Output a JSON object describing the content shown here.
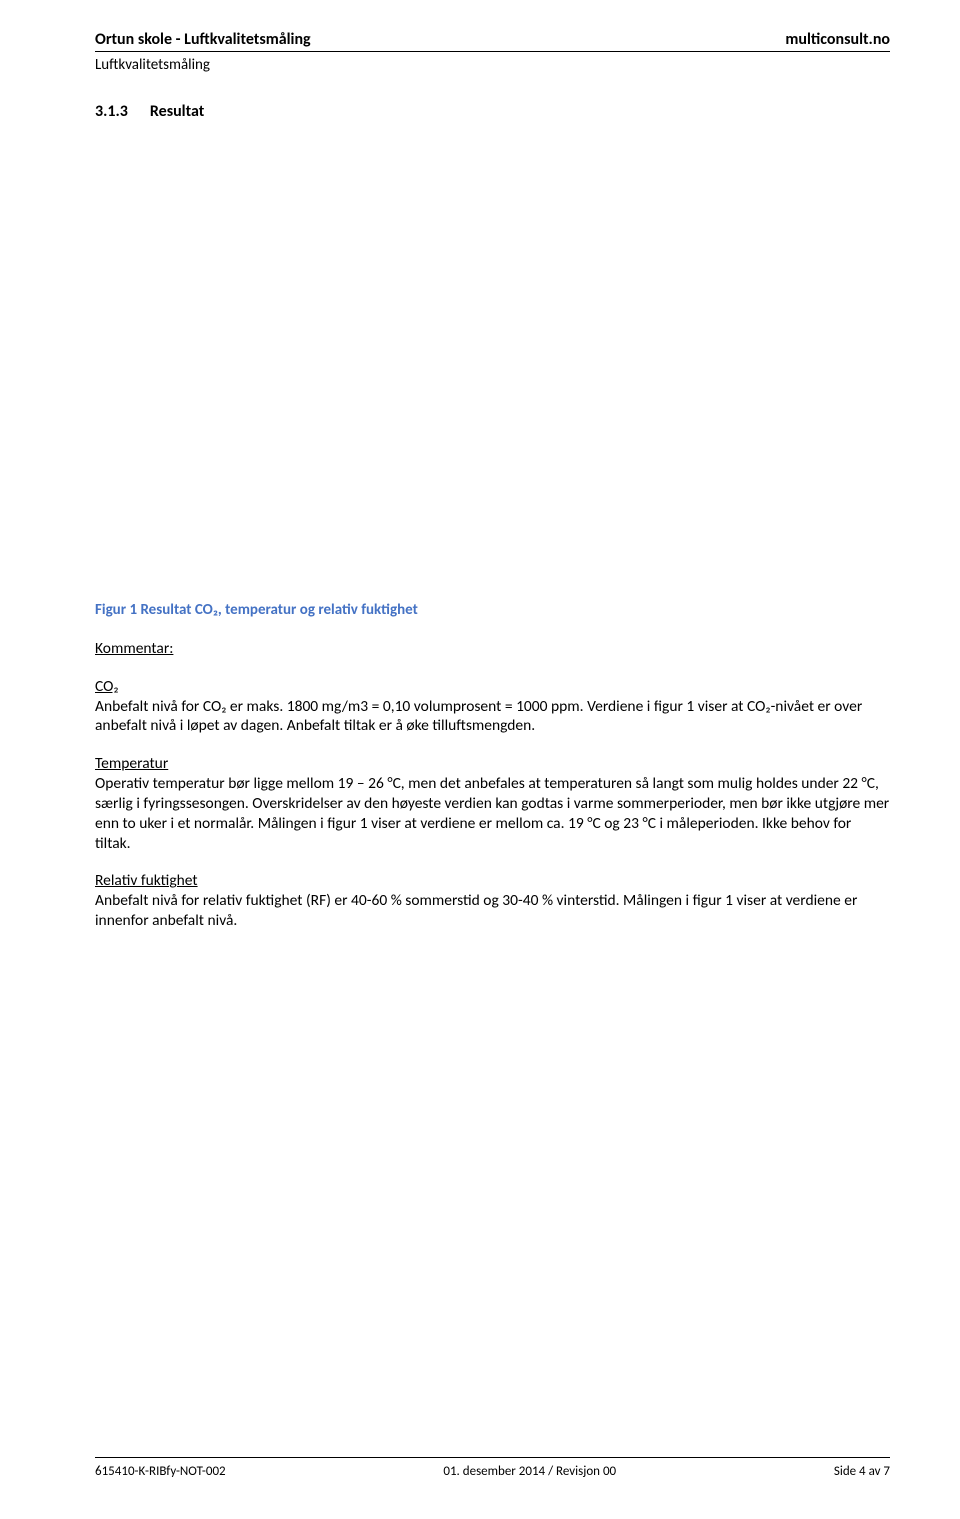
{
  "header": {
    "left": "Ortun skole - Luftkvalitetsmåling",
    "right": "multiconsult.no",
    "sub": "Luftkvalitetsmåling"
  },
  "section": {
    "number": "3.1.3",
    "title": "Resultat"
  },
  "figure_caption": "Figur 1 Resultat CO₂, temperatur og relativ fuktighet",
  "kommentar_label": "Kommentar:",
  "co2": {
    "label": "CO₂",
    "line1": "Anbefalt nivå for CO₂ er maks. 1800 mg/m3 = 0,10 volumprosent = 1000 ppm. Verdiene i figur 1 viser at CO₂-nivået er over anbefalt nivå i løpet av dagen. Anbefalt tiltak er å øke tilluftsmengden."
  },
  "temperatur": {
    "label": "Temperatur",
    "text": "Operativ temperatur bør ligge mellom 19 – 26 °C, men det anbefales at temperaturen så langt som mulig holdes under 22 °C, særlig i fyringssesongen. Overskridelser av den høyeste verdien kan godtas i varme sommerperioder, men bør ikke utgjøre mer enn to uker i et normalår. Målingen i figur 1 viser at verdiene er mellom ca. 19 °C og 23 °C i måleperioden. Ikke behov for tiltak."
  },
  "fuktighet": {
    "label": "Relativ fuktighet",
    "text": "Anbefalt nivå for relativ fuktighet (RF) er 40-60 % sommerstid og 30-40 % vinterstid. Målingen i figur 1 viser at verdiene er innenfor anbefalt nivå."
  },
  "footer": {
    "left": "615410-K-RIBfy-NOT-002",
    "center": "01. desember 2014 / Revisjon 00",
    "right": "Side 4 av 7"
  }
}
